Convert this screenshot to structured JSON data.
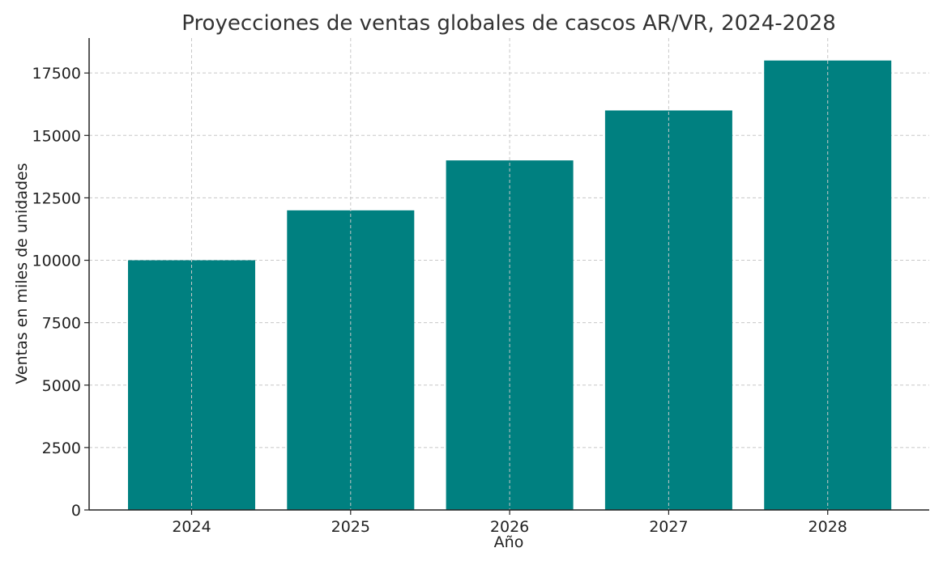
{
  "chart_data": {
    "type": "bar",
    "title": "Proyecciones de ventas globales de cascos AR/VR, 2024-2028",
    "xlabel": "Año",
    "ylabel": "Ventas en miles de unidades",
    "categories": [
      "2024",
      "2025",
      "2026",
      "2027",
      "2028"
    ],
    "values": [
      10000,
      12000,
      14000,
      16000,
      18000
    ],
    "ylim": [
      0,
      18900
    ],
    "yticks": [
      0,
      2500,
      5000,
      7500,
      10000,
      12500,
      15000,
      17500
    ],
    "ytick_labels": [
      "0",
      "2500",
      "5000",
      "7500",
      "10000",
      "12500",
      "15000",
      "17500"
    ],
    "grid": true,
    "bar_color": "#008080"
  }
}
